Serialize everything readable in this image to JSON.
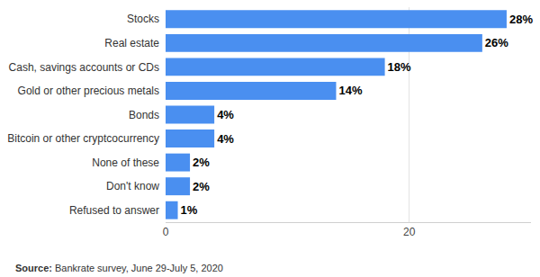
{
  "chart_data": {
    "type": "bar",
    "orientation": "horizontal",
    "categories": [
      "Stocks",
      "Real estate",
      "Cash, savings accounts or CDs",
      "Gold or other precious metals",
      "Bonds",
      "Bitcoin or other cryptcocurrency",
      "None of these",
      "Don't know",
      "Refused to answer"
    ],
    "values": [
      28,
      26,
      18,
      14,
      4,
      4,
      2,
      2,
      1
    ],
    "value_labels": [
      "28%",
      "26%",
      "18%",
      "14%",
      "4%",
      "4%",
      "2%",
      "2%",
      "1%"
    ],
    "data_labels": true,
    "color": "#4a8ff0",
    "xlim": [
      0,
      30
    ],
    "xticks": [
      0,
      20
    ],
    "grid": true,
    "annotations": [
      "Source: Bankrate survey, June 29-July 5, 2020"
    ]
  }
}
